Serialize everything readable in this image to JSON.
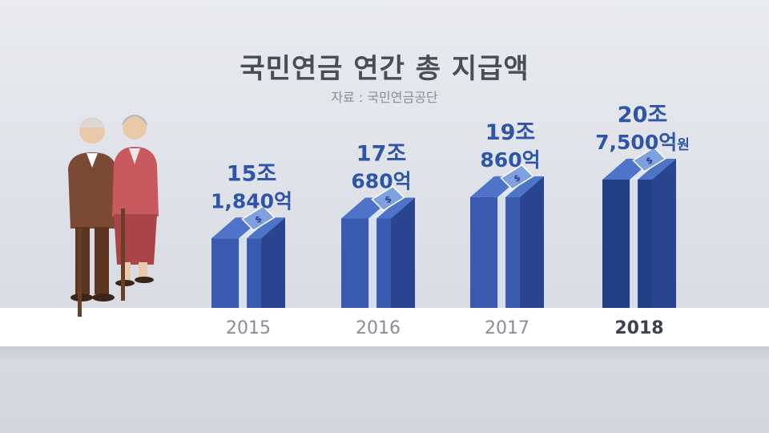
{
  "title": "국민연금 연간 총 지급액",
  "source": "자료 : 국민연금공단",
  "chart_data": {
    "type": "bar",
    "title": "국민연금 연간 총 지급액",
    "categories": [
      "2015",
      "2016",
      "2017",
      "2018"
    ],
    "values": [
      151840,
      170680,
      190860,
      207500
    ],
    "unit": "억원",
    "labels": [
      {
        "line1": "15조",
        "line2": "1,840억",
        "suffix": ""
      },
      {
        "line1": "17조",
        "line2": "680억",
        "suffix": ""
      },
      {
        "line1": "19조",
        "line2": "860억",
        "suffix": ""
      },
      {
        "line1": "20조",
        "line2": "7,500억",
        "suffix": "원"
      }
    ],
    "highlight_category": "2018",
    "ylim": [
      0,
      220000
    ],
    "grid": false,
    "legend": "none"
  },
  "colors": {
    "bar_front": "#3a5ab0",
    "bar_side": "#2a4590",
    "bar_top": "#4d74c8",
    "bar_highlight_front": "#213f85",
    "label": "#2f55a8",
    "year": "#8a8d96",
    "year_highlight": "#3d4150"
  },
  "illustration": "elderly-couple-with-canes-icon"
}
